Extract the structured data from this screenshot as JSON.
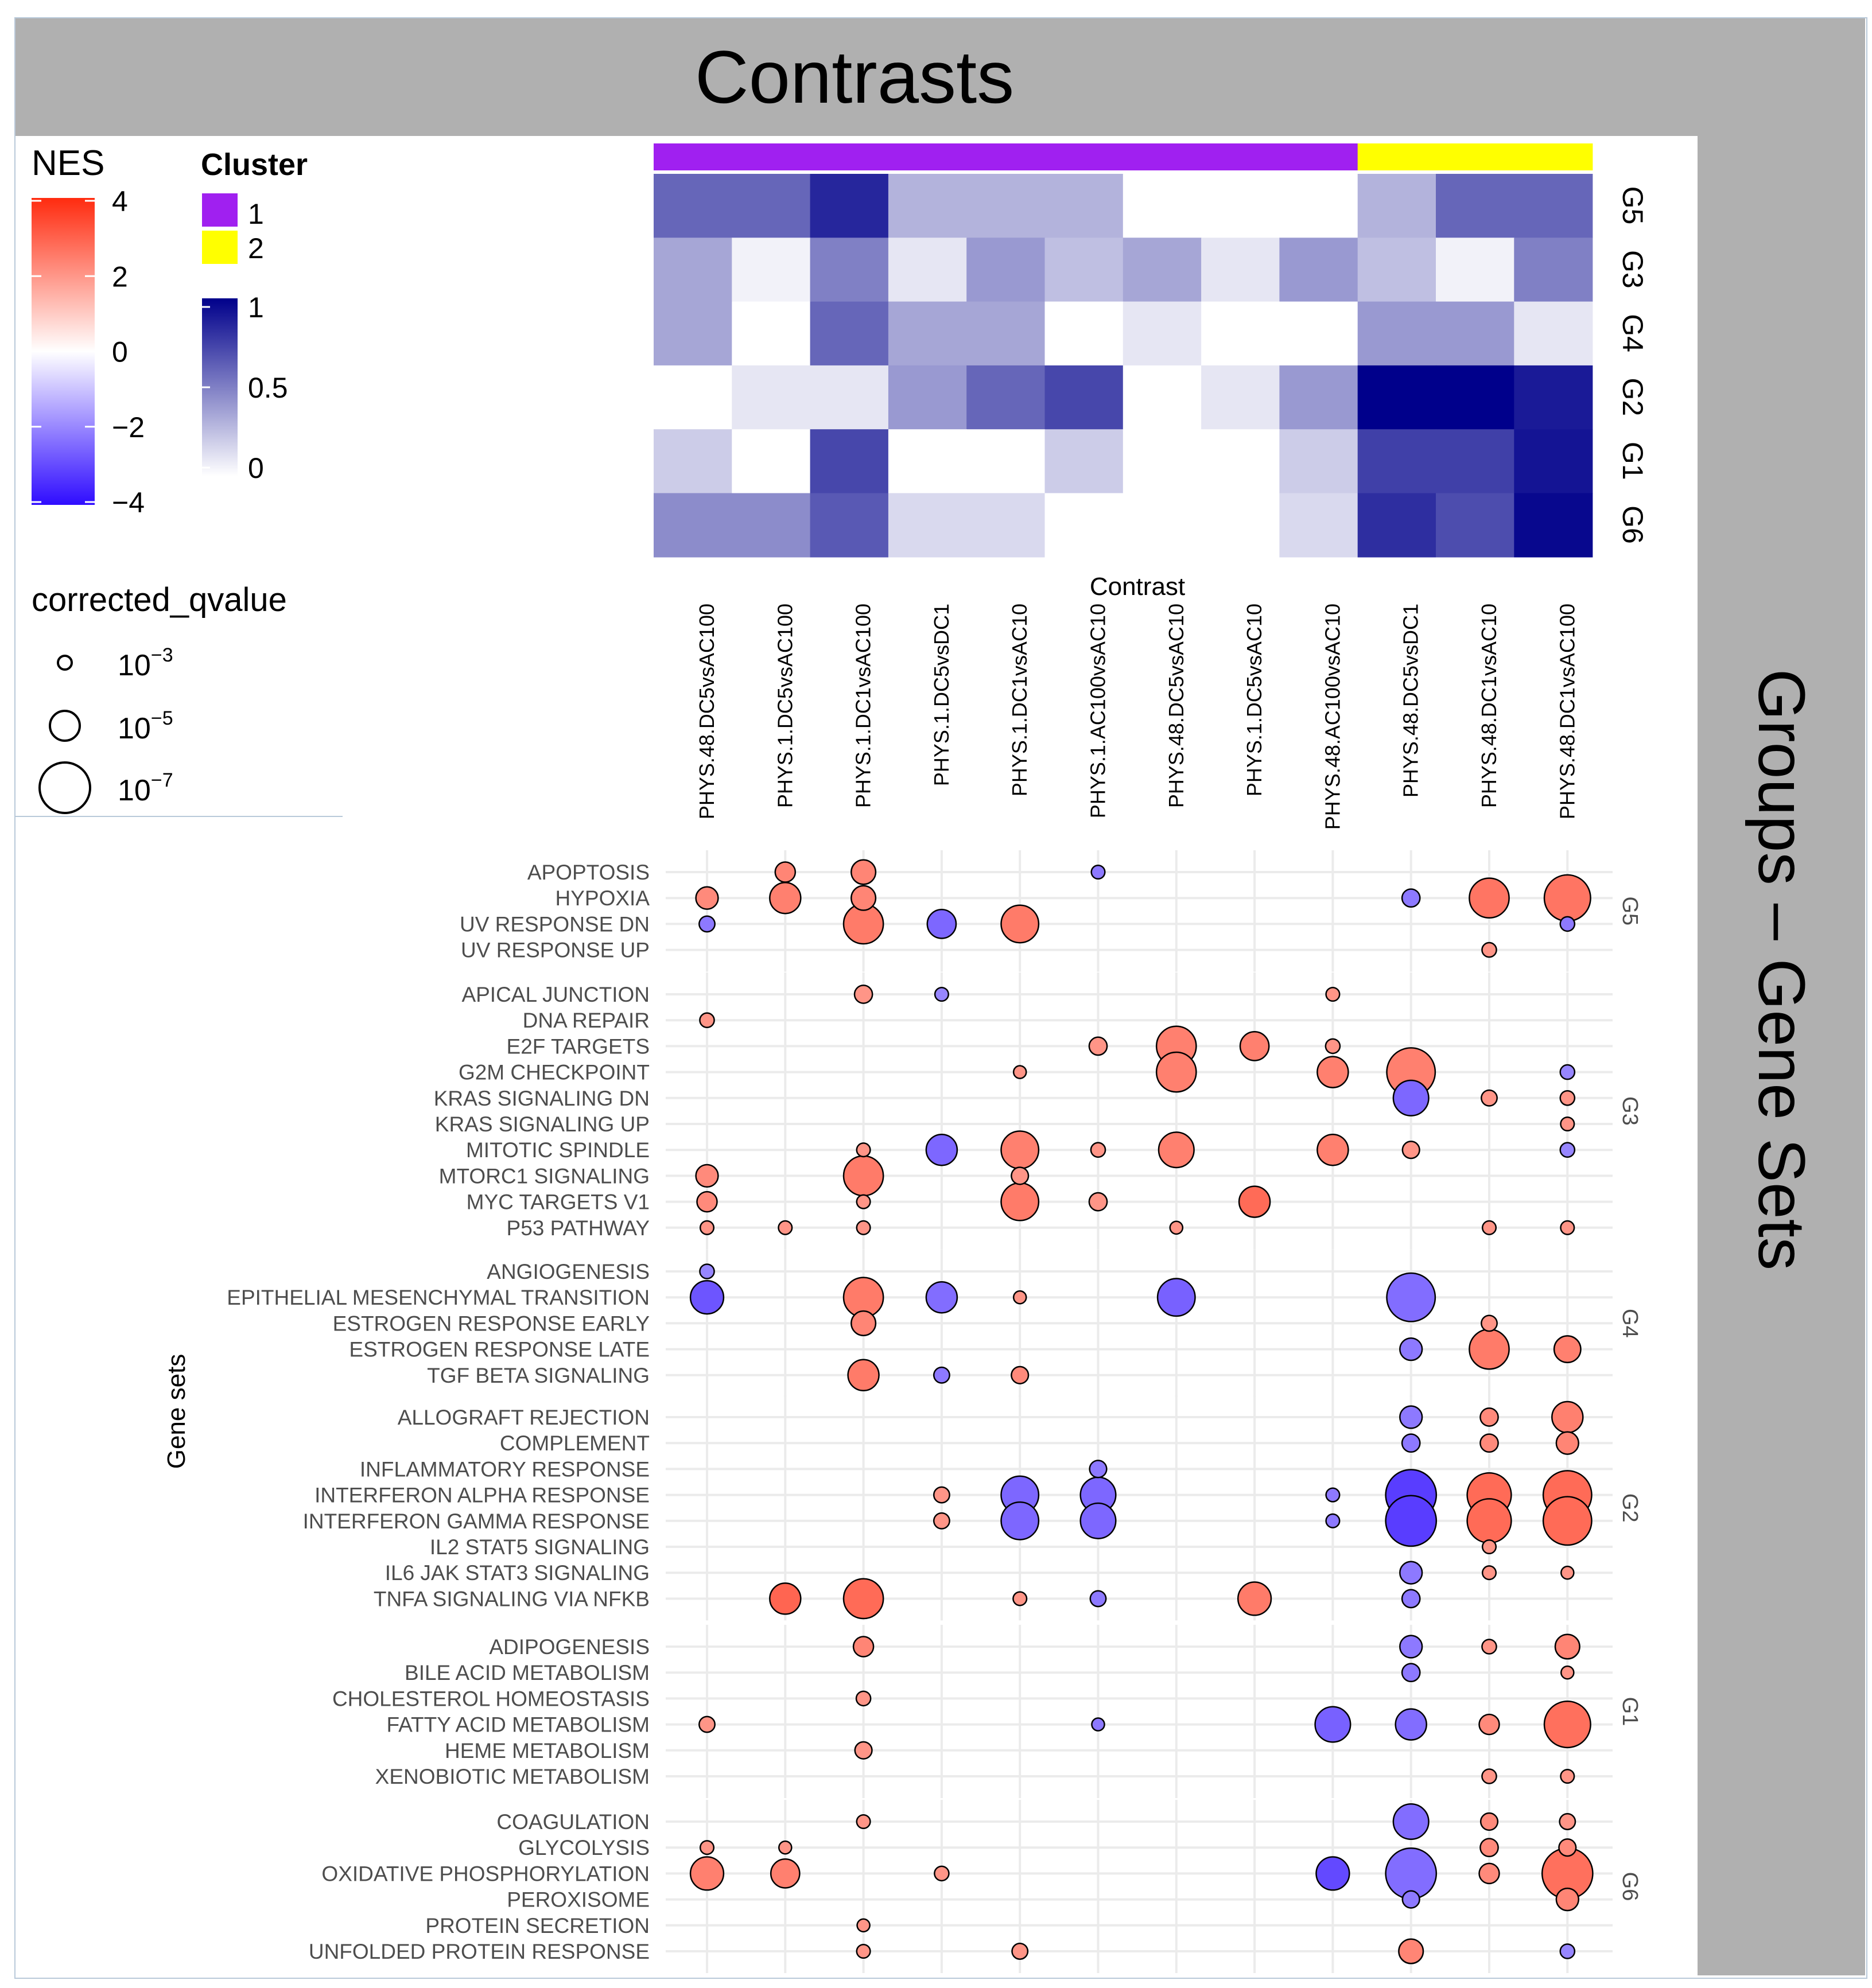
{
  "header": {
    "title": "Contrasts",
    "side_title": "Groups – Gene Sets"
  },
  "legend": {
    "nes_title": "NES",
    "nes_ticks": [
      "4",
      "2",
      "0",
      "−2",
      "−4"
    ],
    "nes_colors": {
      "high": "#ff2b0f",
      "mid": "#ffffff",
      "low": "#2f0cff"
    },
    "cluster_title": "Cluster",
    "clusters": [
      {
        "label": "1",
        "color": "#a020f0"
      },
      {
        "label": "2",
        "color": "#ffff00"
      }
    ],
    "scale_ticks": [
      "1",
      "0.5",
      "0"
    ],
    "scale_colors": {
      "high": "#00008b",
      "low": "#ffffff"
    },
    "qvalue_title": "corrected_qvalue",
    "qvalue_items": [
      {
        "base": "10",
        "exp": "−3"
      },
      {
        "base": "10",
        "exp": "−5"
      },
      {
        "base": "10",
        "exp": "−7"
      }
    ]
  },
  "chart_data": {
    "type": "scatter",
    "subtype": "bubble chart with annotation heatmap",
    "xlabel": "Contrast",
    "ylabel": "Gene sets",
    "contrasts": [
      "PHYS.48.DC5vsAC100",
      "PHYS.1.DC5vsAC100",
      "PHYS.1.DC1vsAC100",
      "PHYS.1.DC5vsDC1",
      "PHYS.1.DC1vsAC10",
      "PHYS.1.AC100vsAC10",
      "PHYS.48.DC5vsAC10",
      "PHYS.1.DC5vsAC10",
      "PHYS.48.AC100vsAC10",
      "PHYS.48.DC5vsDC1",
      "PHYS.48.DC1vsAC10",
      "PHYS.48.DC1vsAC100"
    ],
    "contrast_cluster": [
      1,
      1,
      1,
      1,
      1,
      1,
      1,
      1,
      1,
      2,
      2,
      2
    ],
    "heatmap_rows": [
      "G5",
      "G3",
      "G4",
      "G2",
      "G1",
      "G6"
    ],
    "heatmap_values": [
      [
        0.6,
        0.6,
        0.85,
        0.3,
        0.3,
        0.3,
        0.0,
        0.0,
        0.0,
        0.3,
        0.6,
        0.6
      ],
      [
        0.35,
        0.05,
        0.5,
        0.1,
        0.4,
        0.25,
        0.35,
        0.1,
        0.4,
        0.25,
        0.05,
        0.5
      ],
      [
        0.35,
        0.0,
        0.6,
        0.35,
        0.35,
        0.0,
        0.1,
        0.0,
        0.0,
        0.4,
        0.4,
        0.1
      ],
      [
        0.0,
        0.1,
        0.1,
        0.4,
        0.6,
        0.72,
        0.0,
        0.1,
        0.4,
        1.0,
        1.0,
        0.9
      ],
      [
        0.2,
        0.0,
        0.72,
        0.0,
        0.0,
        0.2,
        0.0,
        0.0,
        0.2,
        0.75,
        0.75,
        0.92
      ],
      [
        0.45,
        0.45,
        0.65,
        0.15,
        0.15,
        0.0,
        0.0,
        0.0,
        0.15,
        0.82,
        0.7,
        0.97
      ]
    ],
    "nes_range": [
      -4,
      4
    ],
    "qvalue_legend": [
      "1e-3",
      "1e-5",
      "1e-7"
    ],
    "groups": [
      {
        "name": "G5",
        "gene_sets": [
          "APOPTOSIS",
          "HYPOXIA",
          "UV RESPONSE DN",
          "UV RESPONSE UP"
        ]
      },
      {
        "name": "G3",
        "gene_sets": [
          "APICAL JUNCTION",
          "DNA REPAIR",
          "E2F TARGETS",
          "G2M CHECKPOINT",
          "KRAS SIGNALING DN",
          "KRAS SIGNALING UP",
          "MITOTIC SPINDLE",
          "MTORC1 SIGNALING",
          "MYC TARGETS V1",
          "P53 PATHWAY"
        ]
      },
      {
        "name": "G4",
        "gene_sets": [
          "ANGIOGENESIS",
          "EPITHELIAL MESENCHYMAL TRANSITION",
          "ESTROGEN RESPONSE EARLY",
          "ESTROGEN RESPONSE LATE",
          "TGF BETA SIGNALING"
        ]
      },
      {
        "name": "G2",
        "gene_sets": [
          "ALLOGRAFT REJECTION",
          "COMPLEMENT",
          "INFLAMMATORY RESPONSE",
          "INTERFERON ALPHA RESPONSE",
          "INTERFERON GAMMA RESPONSE",
          "IL2 STAT5 SIGNALING",
          "IL6 JAK STAT3 SIGNALING",
          "TNFA SIGNALING VIA NFKB"
        ]
      },
      {
        "name": "G1",
        "gene_sets": [
          "ADIPOGENESIS",
          "BILE ACID METABOLISM",
          "CHOLESTEROL HOMEOSTASIS",
          "FATTY ACID METABOLISM",
          "HEME METABOLISM",
          "XENOBIOTIC METABOLISM"
        ]
      },
      {
        "name": "G6",
        "gene_sets": [
          "COAGULATION",
          "GLYCOLYSIS",
          "OXIDATIVE PHOSPHORYLATION",
          "PEROXISOME",
          "PROTEIN SECRETION",
          "UNFOLDED PROTEIN RESPONSE"
        ]
      }
    ],
    "points_note": "each point: [gene_set, contrast_index, NES, -log10(corrected_qvalue)] (values estimated from bubble color and size)",
    "points": [
      [
        "APOPTOSIS",
        1,
        2.3,
        2.5
      ],
      [
        "APOPTOSIS",
        2,
        2.3,
        3.5
      ],
      [
        "APOPTOSIS",
        5,
        -2.2,
        1.0
      ],
      [
        "HYPOXIA",
        0,
        2.2,
        3.0
      ],
      [
        "HYPOXIA",
        1,
        2.4,
        5.0
      ],
      [
        "HYPOXIA",
        2,
        2.3,
        3.5
      ],
      [
        "HYPOXIA",
        9,
        -2.2,
        2.0
      ],
      [
        "HYPOXIA",
        10,
        2.6,
        7.0
      ],
      [
        "HYPOXIA",
        11,
        2.6,
        8.5
      ],
      [
        "UV RESPONSE DN",
        0,
        -2.2,
        1.5
      ],
      [
        "UV RESPONSE DN",
        2,
        2.5,
        7.0
      ],
      [
        "UV RESPONSE DN",
        3,
        -2.5,
        4.5
      ],
      [
        "UV RESPONSE DN",
        4,
        2.5,
        6.5
      ],
      [
        "UV RESPONSE DN",
        11,
        -2.2,
        1.2
      ],
      [
        "UV RESPONSE UP",
        10,
        2.0,
        1.2
      ],
      [
        "APICAL JUNCTION",
        2,
        2.0,
        2.0
      ],
      [
        "APICAL JUNCTION",
        3,
        -2.0,
        1.0
      ],
      [
        "APICAL JUNCTION",
        8,
        2.0,
        1.0
      ],
      [
        "DNA REPAIR",
        0,
        2.0,
        1.2
      ],
      [
        "E2F TARGETS",
        5,
        2.0,
        2.0
      ],
      [
        "E2F TARGETS",
        6,
        2.4,
        7.0
      ],
      [
        "E2F TARGETS",
        7,
        2.4,
        4.5
      ],
      [
        "E2F TARGETS",
        8,
        2.0,
        1.2
      ],
      [
        "G2M CHECKPOINT",
        4,
        2.0,
        0.8
      ],
      [
        "G2M CHECKPOINT",
        6,
        2.4,
        7.0
      ],
      [
        "G2M CHECKPOINT",
        8,
        2.4,
        5.0
      ],
      [
        "G2M CHECKPOINT",
        9,
        2.4,
        9.0
      ],
      [
        "G2M CHECKPOINT",
        11,
        -2.0,
        1.2
      ],
      [
        "KRAS SIGNALING DN",
        9,
        -2.5,
        6.0
      ],
      [
        "KRAS SIGNALING DN",
        10,
        2.0,
        1.5
      ],
      [
        "KRAS SIGNALING DN",
        11,
        2.0,
        1.2
      ],
      [
        "KRAS SIGNALING UP",
        11,
        2.0,
        1.0
      ],
      [
        "MITOTIC SPINDLE",
        2,
        2.0,
        1.0
      ],
      [
        "MITOTIC SPINDLE",
        3,
        -2.5,
        5.0
      ],
      [
        "MITOTIC SPINDLE",
        4,
        2.4,
        6.5
      ],
      [
        "MITOTIC SPINDLE",
        5,
        2.0,
        1.2
      ],
      [
        "MITOTIC SPINDLE",
        6,
        2.4,
        6.0
      ],
      [
        "MITOTIC SPINDLE",
        8,
        2.4,
        5.0
      ],
      [
        "MITOTIC SPINDLE",
        9,
        2.0,
        1.8
      ],
      [
        "MITOTIC SPINDLE",
        11,
        -2.0,
        1.2
      ],
      [
        "MTORC1 SIGNALING",
        0,
        2.2,
        3.0
      ],
      [
        "MTORC1 SIGNALING",
        2,
        2.5,
        7.0
      ],
      [
        "MTORC1 SIGNALING",
        4,
        2.0,
        1.8
      ],
      [
        "MYC TARGETS V1",
        0,
        2.2,
        2.5
      ],
      [
        "MYC TARGETS V1",
        2,
        2.0,
        1.0
      ],
      [
        "MYC TARGETS V1",
        4,
        2.5,
        6.5
      ],
      [
        "MYC TARGETS V1",
        5,
        2.0,
        2.0
      ],
      [
        "MYC TARGETS V1",
        7,
        2.8,
        5.0
      ],
      [
        "P53 PATHWAY",
        0,
        2.0,
        1.0
      ],
      [
        "P53 PATHWAY",
        1,
        2.0,
        1.0
      ],
      [
        "P53 PATHWAY",
        2,
        2.0,
        1.0
      ],
      [
        "P53 PATHWAY",
        6,
        2.0,
        0.8
      ],
      [
        "P53 PATHWAY",
        10,
        2.0,
        1.0
      ],
      [
        "P53 PATHWAY",
        11,
        2.0,
        1.0
      ],
      [
        "ANGIOGENESIS",
        0,
        -2.0,
        1.2
      ],
      [
        "EPITHELIAL MESENCHYMAL TRANSITION",
        0,
        -2.8,
        5.5
      ],
      [
        "EPITHELIAL MESENCHYMAL TRANSITION",
        2,
        2.5,
        7.0
      ],
      [
        "EPITHELIAL MESENCHYMAL TRANSITION",
        3,
        -2.4,
        5.0
      ],
      [
        "EPITHELIAL MESENCHYMAL TRANSITION",
        4,
        2.0,
        0.8
      ],
      [
        "EPITHELIAL MESENCHYMAL TRANSITION",
        6,
        -2.6,
        6.5
      ],
      [
        "EPITHELIAL MESENCHYMAL TRANSITION",
        9,
        -2.4,
        9.0
      ],
      [
        "ESTROGEN RESPONSE EARLY",
        2,
        2.3,
        3.5
      ],
      [
        "ESTROGEN RESPONSE EARLY",
        10,
        2.0,
        1.5
      ],
      [
        "ESTROGEN RESPONSE LATE",
        9,
        -2.2,
        3.0
      ],
      [
        "ESTROGEN RESPONSE LATE",
        10,
        2.5,
        7.0
      ],
      [
        "ESTROGEN RESPONSE LATE",
        11,
        2.4,
        4.0
      ],
      [
        "TGF BETA SIGNALING",
        2,
        2.5,
        5.0
      ],
      [
        "TGF BETA SIGNALING",
        3,
        -2.2,
        1.5
      ],
      [
        "TGF BETA SIGNALING",
        4,
        2.2,
        1.8
      ],
      [
        "ALLOGRAFT REJECTION",
        9,
        -2.2,
        3.0
      ],
      [
        "ALLOGRAFT REJECTION",
        10,
        2.2,
        2.0
      ],
      [
        "ALLOGRAFT REJECTION",
        11,
        2.4,
        5.0
      ],
      [
        "COMPLEMENT",
        9,
        -2.2,
        2.0
      ],
      [
        "COMPLEMENT",
        10,
        2.2,
        2.0
      ],
      [
        "COMPLEMENT",
        11,
        2.3,
        3.0
      ],
      [
        "INFLAMMATORY RESPONSE",
        5,
        -2.2,
        1.8
      ],
      [
        "INTERFERON ALPHA RESPONSE",
        3,
        2.0,
        1.5
      ],
      [
        "INTERFERON ALPHA RESPONSE",
        4,
        -2.5,
        6.5
      ],
      [
        "INTERFERON ALPHA RESPONSE",
        5,
        -2.5,
        6.0
      ],
      [
        "INTERFERON ALPHA RESPONSE",
        8,
        -2.2,
        1.0
      ],
      [
        "INTERFERON ALPHA RESPONSE",
        9,
        -3.2,
        9.5
      ],
      [
        "INTERFERON ALPHA RESPONSE",
        10,
        2.8,
        8.0
      ],
      [
        "INTERFERON ALPHA RESPONSE",
        11,
        2.8,
        9.0
      ],
      [
        "INTERFERON GAMMA RESPONSE",
        3,
        2.0,
        1.5
      ],
      [
        "INTERFERON GAMMA RESPONSE",
        4,
        -2.5,
        6.5
      ],
      [
        "INTERFERON GAMMA RESPONSE",
        5,
        -2.5,
        6.0
      ],
      [
        "INTERFERON GAMMA RESPONSE",
        8,
        -2.2,
        1.0
      ],
      [
        "INTERFERON GAMMA RESPONSE",
        9,
        -3.2,
        9.5
      ],
      [
        "INTERFERON GAMMA RESPONSE",
        10,
        2.8,
        8.0
      ],
      [
        "INTERFERON GAMMA RESPONSE",
        11,
        2.8,
        9.0
      ],
      [
        "IL2 STAT5 SIGNALING",
        10,
        2.0,
        1.0
      ],
      [
        "IL6 JAK STAT3 SIGNALING",
        9,
        -2.2,
        3.0
      ],
      [
        "IL6 JAK STAT3 SIGNALING",
        10,
        2.0,
        1.0
      ],
      [
        "IL6 JAK STAT3 SIGNALING",
        11,
        2.0,
        0.8
      ],
      [
        "TNFA SIGNALING VIA NFKB",
        1,
        2.9,
        5.0
      ],
      [
        "TNFA SIGNALING VIA NFKB",
        2,
        2.8,
        7.0
      ],
      [
        "TNFA SIGNALING VIA NFKB",
        4,
        2.0,
        1.0
      ],
      [
        "TNFA SIGNALING VIA NFKB",
        5,
        -2.2,
        1.5
      ],
      [
        "TNFA SIGNALING VIA NFKB",
        7,
        2.5,
        5.5
      ],
      [
        "TNFA SIGNALING VIA NFKB",
        9,
        -2.2,
        2.0
      ],
      [
        "ADIPOGENESIS",
        2,
        2.3,
        2.5
      ],
      [
        "ADIPOGENESIS",
        9,
        -2.2,
        3.0
      ],
      [
        "ADIPOGENESIS",
        10,
        2.0,
        1.2
      ],
      [
        "ADIPOGENESIS",
        11,
        2.3,
        3.5
      ],
      [
        "BILE ACID METABOLISM",
        9,
        -2.2,
        2.0
      ],
      [
        "BILE ACID METABOLISM",
        11,
        2.0,
        0.8
      ],
      [
        "CHOLESTEROL HOMEOSTASIS",
        2,
        2.0,
        1.2
      ],
      [
        "FATTY ACID METABOLISM",
        0,
        2.0,
        1.5
      ],
      [
        "FATTY ACID METABOLISM",
        5,
        -2.2,
        0.8
      ],
      [
        "FATTY ACID METABOLISM",
        8,
        -2.6,
        6.0
      ],
      [
        "FATTY ACID METABOLISM",
        9,
        -2.4,
        5.0
      ],
      [
        "FATTY ACID METABOLISM",
        10,
        2.2,
        2.5
      ],
      [
        "FATTY ACID METABOLISM",
        11,
        2.7,
        8.5
      ],
      [
        "HEME METABOLISM",
        2,
        2.0,
        1.8
      ],
      [
        "XENOBIOTIC METABOLISM",
        10,
        2.0,
        1.2
      ],
      [
        "XENOBIOTIC METABOLISM",
        11,
        2.0,
        1.0
      ],
      [
        "COAGULATION",
        2,
        2.0,
        1.0
      ],
      [
        "COAGULATION",
        9,
        -2.4,
        6.0
      ],
      [
        "COAGULATION",
        10,
        2.2,
        1.8
      ],
      [
        "COAGULATION",
        11,
        2.0,
        1.5
      ],
      [
        "GLYCOLYSIS",
        0,
        2.0,
        1.0
      ],
      [
        "GLYCOLYSIS",
        1,
        2.0,
        0.8
      ],
      [
        "GLYCOLYSIS",
        10,
        2.2,
        2.0
      ],
      [
        "GLYCOLYSIS",
        11,
        2.2,
        1.8
      ],
      [
        "OXIDATIVE PHOSPHORYLATION",
        0,
        2.4,
        5.5
      ],
      [
        "OXIDATIVE PHOSPHORYLATION",
        1,
        2.4,
        4.5
      ],
      [
        "OXIDATIVE PHOSPHORYLATION",
        3,
        2.0,
        1.2
      ],
      [
        "OXIDATIVE PHOSPHORYLATION",
        8,
        -3.0,
        5.5
      ],
      [
        "OXIDATIVE PHOSPHORYLATION",
        9,
        -2.4,
        9.5
      ],
      [
        "OXIDATIVE PHOSPHORYLATION",
        10,
        2.2,
        2.5
      ],
      [
        "OXIDATIVE PHOSPHORYLATION",
        11,
        2.7,
        9.5
      ],
      [
        "PEROXISOME",
        9,
        -2.2,
        1.8
      ],
      [
        "PEROXISOME",
        11,
        2.3,
        3.0
      ],
      [
        "PROTEIN SECRETION",
        2,
        2.0,
        0.8
      ],
      [
        "UNFOLDED PROTEIN RESPONSE",
        2,
        2.0,
        1.0
      ],
      [
        "UNFOLDED PROTEIN RESPONSE",
        4,
        2.0,
        1.5
      ],
      [
        "UNFOLDED PROTEIN RESPONSE",
        9,
        2.3,
        3.5
      ],
      [
        "UNFOLDED PROTEIN RESPONSE",
        11,
        -2.0,
        1.2
      ]
    ]
  }
}
